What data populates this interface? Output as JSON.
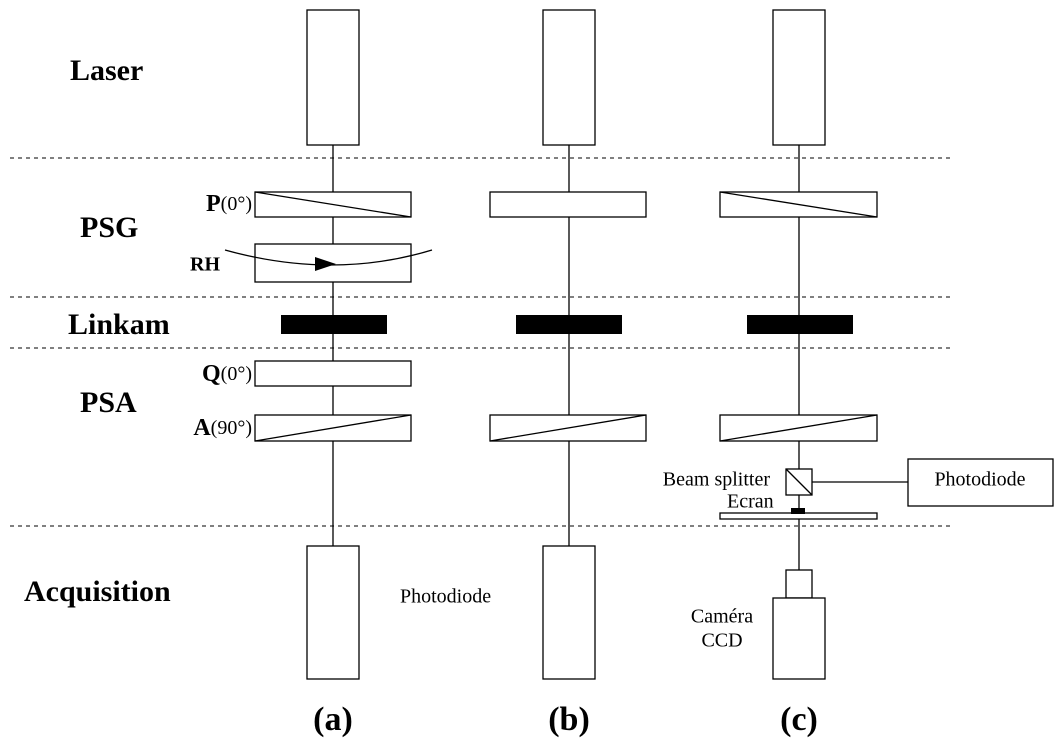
{
  "sections": [
    "Laser",
    "PSG",
    "Linkam",
    "PSA",
    "Acquisition"
  ],
  "components": {
    "p_name": "P",
    "p_angle": "(0°)",
    "rh": "RH",
    "q_name": "Q",
    "q_angle": "(0°)",
    "a_name": "A",
    "a_angle": "(90°)",
    "beam_splitter": "Beam splitter",
    "photodiode_c": "Photodiode",
    "ecran": "Ecran",
    "photodiode_b": "Photodiode",
    "camera_line1": "Caméra",
    "camera_line2": "CCD"
  },
  "columns": [
    "(a)",
    "(b)",
    "(c)"
  ]
}
